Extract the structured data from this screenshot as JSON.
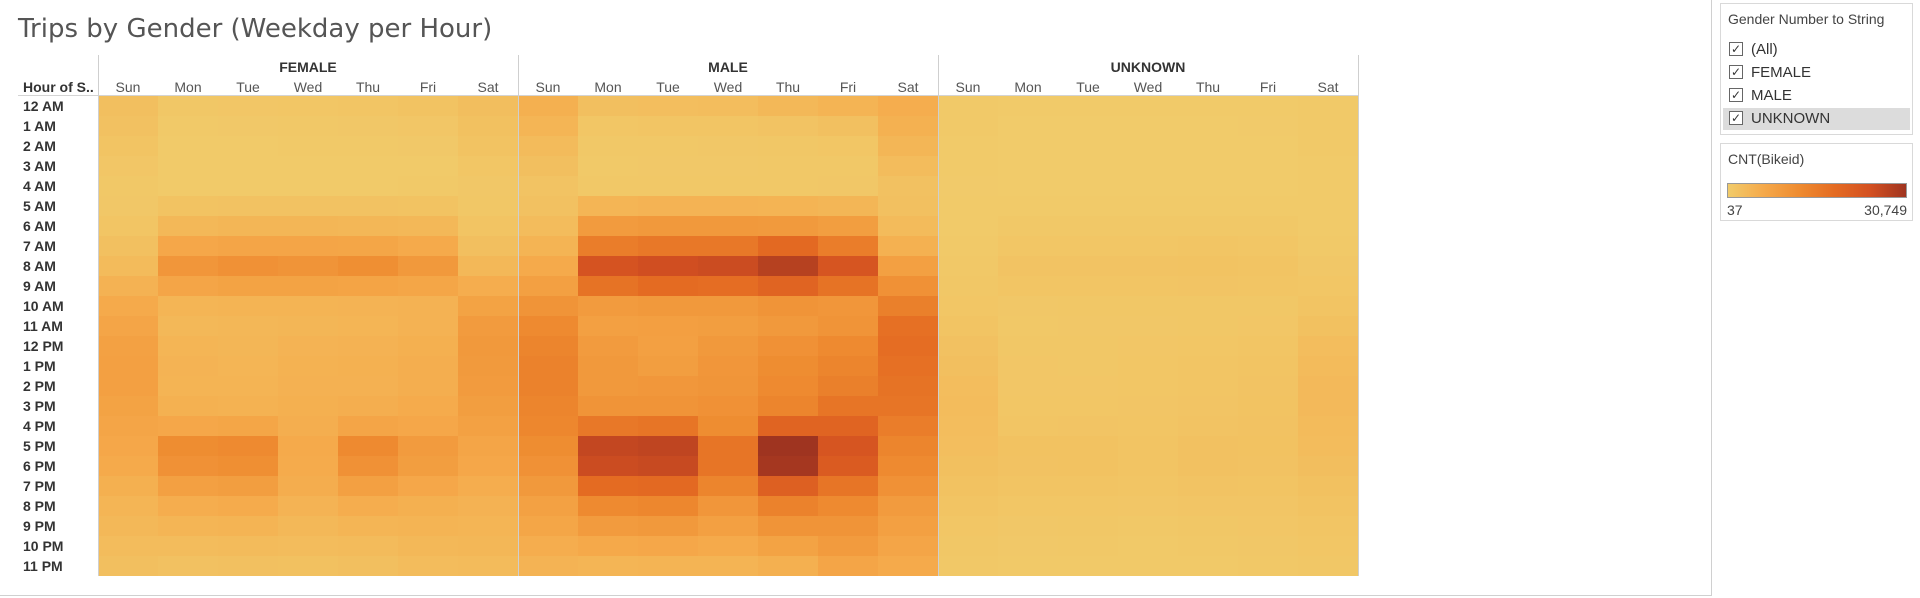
{
  "sheet": {
    "title": "Trips by Gender (Weekday per Hour)"
  },
  "row_header": "Hour of S..",
  "filter": {
    "title": "Gender Number to String",
    "items": [
      {
        "label": "(All)",
        "checked": true,
        "highlighted": false
      },
      {
        "label": "FEMALE",
        "checked": true,
        "highlighted": false
      },
      {
        "label": "MALE",
        "checked": true,
        "highlighted": false
      },
      {
        "label": "UNKNOWN",
        "checked": true,
        "highlighted": true
      }
    ]
  },
  "legend": {
    "title": "CNT(Bikeid)",
    "min_label": "37",
    "max_label": "30,749",
    "colors": [
      "#F1CB6A",
      "#F5A94A",
      "#EE8B30",
      "#E46B22",
      "#D35021",
      "#9F3420"
    ]
  },
  "chart_data": {
    "type": "heatmap",
    "title": "Trips by Gender (Weekday per Hour)",
    "row_label": "Hour of S..",
    "groups": [
      "FEMALE",
      "MALE",
      "UNKNOWN"
    ],
    "days": [
      "Sun",
      "Mon",
      "Tue",
      "Wed",
      "Thu",
      "Fri",
      "Sat"
    ],
    "hours": [
      "12 AM",
      "1 AM",
      "2 AM",
      "3 AM",
      "4 AM",
      "5 AM",
      "6 AM",
      "7 AM",
      "8 AM",
      "9 AM",
      "10 AM",
      "11 AM",
      "12 PM",
      "1 PM",
      "2 PM",
      "3 PM",
      "4 PM",
      "5 PM",
      "6 PM",
      "7 PM",
      "8 PM",
      "9 PM",
      "10 PM",
      "11 PM"
    ],
    "color_min": 37,
    "color_max": 30749,
    "values": {
      "FEMALE": [
        [
          2200,
          800,
          900,
          1000,
          1200,
          1500,
          2300
        ],
        [
          1800,
          400,
          500,
          600,
          700,
          900,
          1900
        ],
        [
          1300,
          250,
          300,
          350,
          400,
          500,
          1500
        ],
        [
          900,
          180,
          200,
          220,
          250,
          300,
          1000
        ],
        [
          600,
          250,
          280,
          300,
          300,
          350,
          700
        ],
        [
          700,
          1500,
          1600,
          1600,
          1600,
          1500,
          800
        ],
        [
          1200,
          3500,
          3800,
          3800,
          3700,
          3400,
          1300
        ],
        [
          2000,
          6500,
          7000,
          7000,
          6800,
          6000,
          2200
        ],
        [
          3000,
          10000,
          11000,
          10500,
          11500,
          9500,
          3500
        ],
        [
          4500,
          7000,
          7500,
          7500,
          7300,
          6800,
          5500
        ],
        [
          6000,
          4000,
          4200,
          4200,
          4300,
          4500,
          7500
        ],
        [
          7000,
          3500,
          3700,
          3800,
          4000,
          4500,
          9000
        ],
        [
          7800,
          4000,
          3800,
          4300,
          4500,
          5000,
          9500
        ],
        [
          8000,
          4300,
          4000,
          4600,
          4800,
          5200,
          9300
        ],
        [
          8000,
          4200,
          4200,
          4700,
          4700,
          5300,
          9000
        ],
        [
          7500,
          4800,
          4600,
          5000,
          5200,
          5800,
          8500
        ],
        [
          7000,
          6500,
          6800,
          5200,
          7000,
          6500,
          7800
        ],
        [
          6500,
          12000,
          12500,
          6000,
          12500,
          9000,
          7000
        ],
        [
          6000,
          11000,
          11500,
          5800,
          11000,
          8500,
          6500
        ],
        [
          5000,
          8000,
          8500,
          5400,
          8000,
          6500,
          5500
        ],
        [
          4000,
          5500,
          5800,
          4300,
          5500,
          5000,
          4500
        ],
        [
          3500,
          4000,
          4200,
          3500,
          4000,
          4200,
          4000
        ],
        [
          2800,
          2800,
          3000,
          2700,
          3000,
          3500,
          3600
        ],
        [
          2200,
          1800,
          2000,
          1900,
          2200,
          2800,
          3000
        ]
      ],
      "MALE": [
        [
          5000,
          2200,
          2400,
          2600,
          3500,
          4200,
          5500
        ],
        [
          4000,
          1000,
          1100,
          1200,
          1400,
          2000,
          4800
        ],
        [
          3000,
          600,
          650,
          700,
          800,
          1000,
          3800
        ],
        [
          2200,
          450,
          500,
          500,
          550,
          650,
          2800
        ],
        [
          1400,
          600,
          650,
          650,
          650,
          700,
          1800
        ],
        [
          1800,
          4000,
          4300,
          4300,
          4200,
          3800,
          2000
        ],
        [
          2800,
          9000,
          9500,
          9500,
          9300,
          8500,
          3000
        ],
        [
          4200,
          15000,
          16000,
          16000,
          19000,
          15000,
          4800
        ],
        [
          6000,
          24000,
          25000,
          25500,
          28000,
          23500,
          8000
        ],
        [
          8000,
          17000,
          18500,
          18000,
          20000,
          17000,
          11000
        ],
        [
          10500,
          9000,
          9500,
          9500,
          10500,
          10000,
          14500
        ],
        [
          12500,
          8000,
          8300,
          8500,
          9500,
          10500,
          17500
        ],
        [
          13500,
          9000,
          8000,
          9500,
          11000,
          12500,
          18000
        ],
        [
          14000,
          9500,
          8500,
          10000,
          12000,
          13500,
          17500
        ],
        [
          14000,
          9500,
          9800,
          10200,
          12500,
          14500,
          17000
        ],
        [
          13500,
          10500,
          10500,
          11000,
          13500,
          16500,
          16500
        ],
        [
          13000,
          16000,
          16500,
          12000,
          20000,
          20000,
          15000
        ],
        [
          12000,
          26500,
          27000,
          16500,
          30749,
          23500,
          13500
        ],
        [
          11000,
          25500,
          26000,
          16500,
          30000,
          22000,
          12500
        ],
        [
          9500,
          18500,
          19000,
          13500,
          21000,
          16500,
          11000
        ],
        [
          7800,
          12500,
          13000,
          10000,
          14000,
          12500,
          9000
        ],
        [
          6800,
          9000,
          9500,
          8000,
          10500,
          10500,
          8000
        ],
        [
          5500,
          6200,
          6500,
          6000,
          7500,
          9000,
          7000
        ],
        [
          4300,
          4000,
          4200,
          4200,
          5000,
          7000,
          6000
        ]
      ],
      "UNKNOWN": [
        [
          400,
          150,
          150,
          160,
          200,
          250,
          450
        ],
        [
          350,
          100,
          100,
          100,
          110,
          130,
          400
        ],
        [
          280,
          70,
          70,
          75,
          80,
          90,
          330
        ],
        [
          200,
          50,
          50,
          55,
          60,
          65,
          250
        ],
        [
          130,
          60,
          60,
          65,
          65,
          70,
          170
        ],
        [
          160,
          250,
          260,
          260,
          250,
          240,
          190
        ],
        [
          250,
          550,
          570,
          570,
          560,
          520,
          280
        ],
        [
          380,
          950,
          1000,
          1000,
          1100,
          950,
          430
        ],
        [
          550,
          1400,
          1450,
          1450,
          1550,
          1350,
          700
        ],
        [
          750,
          1100,
          1150,
          1150,
          1250,
          1100,
          950
        ],
        [
          1000,
          700,
          720,
          730,
          800,
          800,
          1350
        ],
        [
          1300,
          650,
          680,
          700,
          800,
          900,
          1900
        ],
        [
          1800,
          800,
          750,
          900,
          1000,
          1100,
          2600
        ],
        [
          2200,
          900,
          800,
          950,
          1100,
          1300,
          3000
        ],
        [
          2600,
          900,
          900,
          1000,
          1150,
          1400,
          3200
        ],
        [
          2700,
          950,
          950,
          1050,
          1250,
          1500,
          3200
        ],
        [
          2600,
          1200,
          1250,
          1100,
          1450,
          1600,
          3000
        ],
        [
          2400,
          1700,
          1750,
          1300,
          1850,
          1700,
          2700
        ],
        [
          2100,
          1650,
          1700,
          1300,
          1800,
          1600,
          2300
        ],
        [
          1700,
          1300,
          1350,
          1100,
          1400,
          1300,
          1900
        ],
        [
          1300,
          950,
          1000,
          850,
          1050,
          1050,
          1500
        ],
        [
          1000,
          700,
          750,
          650,
          800,
          850,
          1200
        ],
        [
          750,
          500,
          520,
          480,
          600,
          700,
          950
        ],
        [
          550,
          350,
          380,
          350,
          450,
          550,
          750
        ]
      ]
    }
  }
}
